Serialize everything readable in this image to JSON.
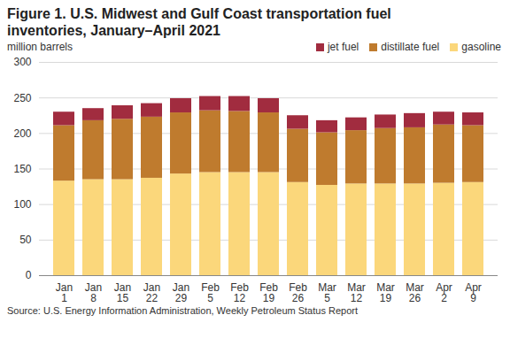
{
  "chart_data": {
    "type": "bar",
    "stacked": true,
    "title": "Figure 1. U.S. Midwest and Gulf Coast transportation fuel inventories, January–April 2021",
    "subtitle": "million barrels",
    "source": "Source: U.S. Energy Information Administration, Weekly Petroleum Status Report",
    "categories": [
      "Jan\n1",
      "Jan\n8",
      "Jan\n15",
      "Jan\n22",
      "Jan\n29",
      "Feb\n5",
      "Feb\n12",
      "Feb\n19",
      "Feb\n26",
      "Mar\n5",
      "Mar\n12",
      "Mar\n19",
      "Mar\n26",
      "Apr\n2",
      "Apr\n9"
    ],
    "series": [
      {
        "name": "gasoline",
        "color": "#fbd77b",
        "values": [
          133,
          135,
          135,
          137,
          143,
          145,
          145,
          145,
          131,
          127,
          129,
          129,
          129,
          130,
          131
        ]
      },
      {
        "name": "distillate fuel",
        "color": "#bf7b2e",
        "values": [
          78,
          83,
          85,
          86,
          86,
          87,
          86,
          84,
          75,
          74,
          75,
          78,
          79,
          82,
          80
        ]
      },
      {
        "name": "jet fuel",
        "color": "#a12c3f",
        "values": [
          19,
          17,
          19,
          19,
          20,
          20,
          21,
          20,
          19,
          17,
          18,
          19,
          20,
          18,
          18
        ]
      }
    ],
    "ylim": [
      0,
      300
    ],
    "yticks": [
      0,
      50,
      100,
      150,
      200,
      250,
      300
    ],
    "grid": true,
    "legend": "top-right"
  }
}
